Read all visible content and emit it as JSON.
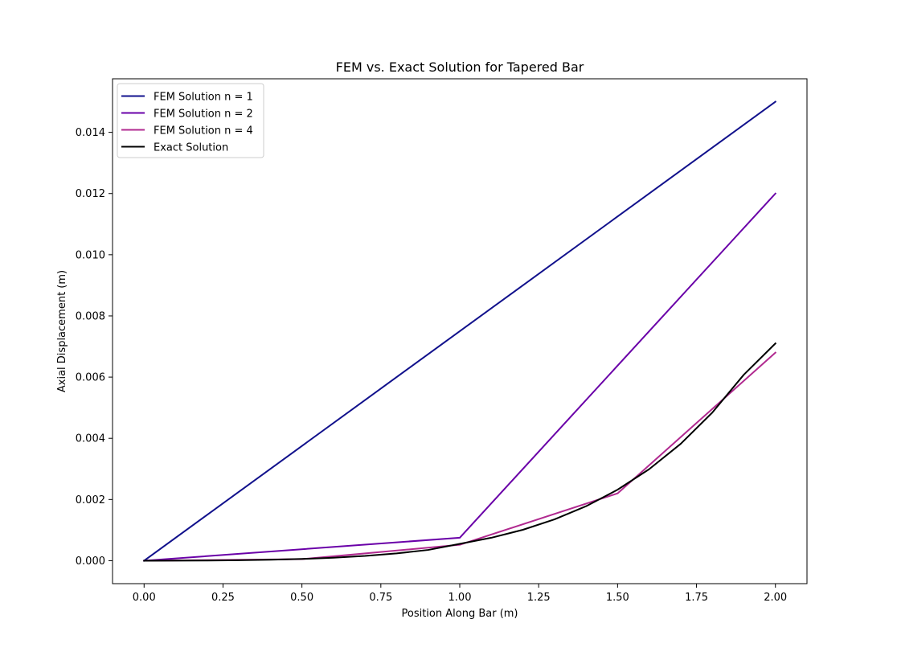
{
  "chart_data": {
    "type": "line",
    "title": "FEM vs. Exact Solution for Tapered Bar",
    "xlabel": "Position Along Bar (m)",
    "ylabel": "Axial Displacement (m)",
    "xlim": [
      -0.1,
      2.1
    ],
    "ylim": [
      -0.00075,
      0.01575
    ],
    "xticks": [
      0.0,
      0.25,
      0.5,
      0.75,
      1.0,
      1.25,
      1.5,
      1.75,
      2.0
    ],
    "xtick_labels": [
      "0.00",
      "0.25",
      "0.50",
      "0.75",
      "1.00",
      "1.25",
      "1.50",
      "1.75",
      "2.00"
    ],
    "yticks": [
      0.0,
      0.002,
      0.004,
      0.006,
      0.008,
      0.01,
      0.012,
      0.014
    ],
    "ytick_labels": [
      "0.000",
      "0.002",
      "0.004",
      "0.006",
      "0.008",
      "0.010",
      "0.012",
      "0.014"
    ],
    "grid": false,
    "legend_position": "top-left",
    "series": [
      {
        "name": "FEM Solution n = 1",
        "color": "#11118c",
        "x": [
          0.0,
          2.0
        ],
        "y": [
          0.0,
          0.015
        ]
      },
      {
        "name": "FEM Solution n = 2",
        "color": "#6a00a8",
        "x": [
          0.0,
          1.0,
          2.0
        ],
        "y": [
          0.0,
          0.00075,
          0.012
        ]
      },
      {
        "name": "FEM Solution n = 4",
        "color": "#b12a90",
        "x": [
          0.0,
          0.5,
          1.0,
          1.5,
          2.0
        ],
        "y": [
          0.0,
          5e-05,
          0.00052,
          0.0022,
          0.0068
        ]
      },
      {
        "name": "Exact Solution",
        "color": "#000000",
        "x": [
          0.0,
          0.1,
          0.2,
          0.3,
          0.4,
          0.5,
          0.6,
          0.7,
          0.8,
          0.9,
          1.0,
          1.1,
          1.2,
          1.3,
          1.4,
          1.5,
          1.6,
          1.7,
          1.8,
          1.9,
          2.0
        ],
        "y": [
          0.0,
          1e-06,
          5e-06,
          1.4e-05,
          3e-05,
          5.7e-05,
          9.7e-05,
          0.000156,
          0.000238,
          0.000352,
          0.00055,
          0.00075,
          0.00101,
          0.00135,
          0.00178,
          0.00232,
          0.00299,
          0.00382,
          0.00484,
          0.00608,
          0.0071
        ]
      }
    ]
  }
}
